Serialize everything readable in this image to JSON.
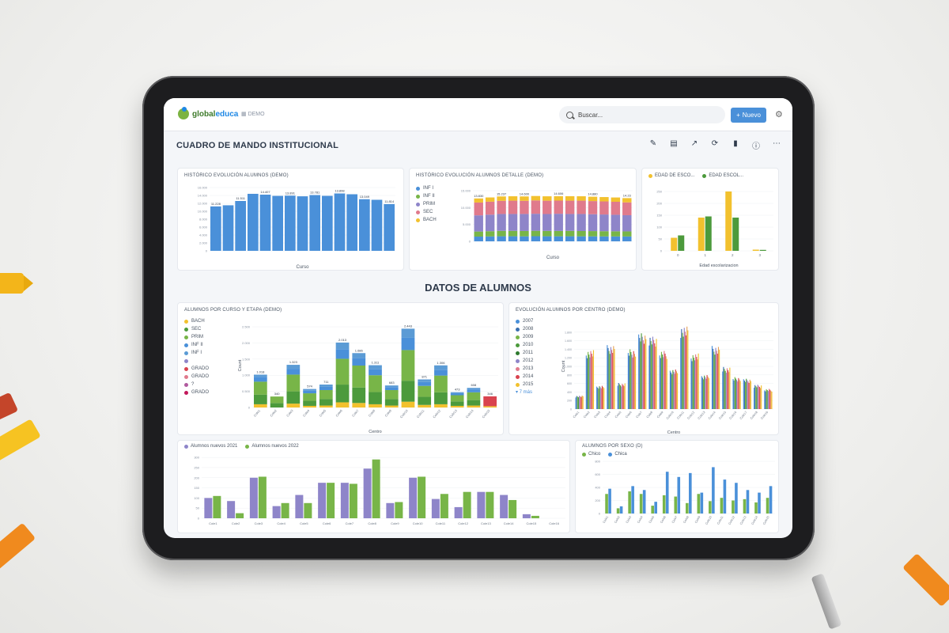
{
  "app": {
    "logo": {
      "part1": "global",
      "part2": "educa"
    },
    "breadcrumb": "DEMO",
    "search": {
      "value": "Buscar..."
    },
    "new_button": "Nuevo"
  },
  "dashboard": {
    "title": "CUADRO DE MANDO INSTITUCIONAL",
    "section_title": "DATOS DE ALUMNOS"
  },
  "colors": {
    "blue": "#4a90d9",
    "green": "#78b548",
    "darkgreen": "#4c9a3c",
    "yellow": "#f2c12e",
    "purple": "#8e85c9",
    "pink": "#e07a8c",
    "red": "#d9434e",
    "orange": "#e6a15a"
  },
  "cards": {
    "hist": {
      "title": "HISTÓRICO EVOLUCIÓN ALUMNOS (DEMO)",
      "xlabel": "Curso",
      "labels": [
        "11.228",
        "11.511",
        "14.407",
        "13.891",
        "13.781",
        "13.898",
        "13.049",
        "11.814"
      ]
    },
    "hist_detail": {
      "title": "HISTÓRICO EVOLUCIÓN ALUMNOS DETALLE (DEMO)",
      "xlabel": "Curso",
      "legend": [
        "INF I",
        "INF II",
        "PRIM",
        "SEC",
        "BACH"
      ],
      "labels": [
        "13.830",
        "15.237",
        "14.600",
        "14.606",
        "14.880",
        "14.23"
      ]
    },
    "edad": {
      "title_a": "EDAD DE ESCO...",
      "title_b": "EDAD ESCOL...",
      "xlabel": "Edad escolarizacion"
    },
    "curso_etapa": {
      "title": "ALUMNOS POR CURSO Y ETAPA (DEMO)",
      "xlabel": "Centro",
      "ylabel": "Count",
      "legend": [
        "BACH",
        "SEC",
        "PRIM",
        "INF II",
        "INF I",
        "",
        "GRADO",
        "GRADO",
        "?",
        "GRADO"
      ],
      "labels": [
        "1.018",
        "340",
        "1.323",
        "574",
        "711",
        "2.013",
        "1.686",
        "1.311",
        "683",
        "2.443",
        "871",
        "1.306",
        "473",
        "608",
        "346"
      ]
    },
    "evol_centro": {
      "title": "EVOLUCIÓN ALUMNOS POR CENTRO (DEMO)",
      "xlabel": "Centro",
      "ylabel": "Count",
      "legend": [
        "2007",
        "2008",
        "2009",
        "2010",
        "2011",
        "2012",
        "2013",
        "2014",
        "2015"
      ],
      "more": "▾ 7 más"
    },
    "nuevos": {
      "legend": [
        "Alumnos nuevos 2021",
        "Alumnos nuevos 2022"
      ]
    },
    "sexo": {
      "title": "ALUMNOS POR SEXO (D)",
      "legend": [
        "Chico",
        "Chica"
      ]
    }
  },
  "chart_data": [
    {
      "type": "bar",
      "title": "HISTÓRICO EVOLUCIÓN ALUMNOS (DEMO)",
      "xlabel": "Curso",
      "ylim": [
        0,
        16000
      ],
      "values": [
        11228,
        11511,
        12600,
        14407,
        14200,
        13891,
        13950,
        13781,
        14100,
        13898,
        14500,
        14300,
        13049,
        12900,
        11814
      ]
    },
    {
      "type": "bar",
      "title": "HISTÓRICO EVOLUCIÓN ALUMNOS DETALLE (DEMO)",
      "stacked": true,
      "series": [
        {
          "name": "INF I",
          "values": [
            1400,
            1450,
            1500,
            1500,
            1480,
            1520,
            1500,
            1490,
            1500,
            1480,
            1470,
            1460,
            1450,
            1440
          ]
        },
        {
          "name": "INF II",
          "values": [
            1500,
            1550,
            1600,
            1600,
            1580,
            1600,
            1590,
            1580,
            1600,
            1570,
            1560,
            1540,
            1520,
            1500
          ]
        },
        {
          "name": "PRIM",
          "values": [
            4800,
            4900,
            5000,
            5000,
            5050,
            5050,
            5000,
            5100,
            5000,
            5050,
            5000,
            4950,
            4900,
            4800
          ]
        },
        {
          "name": "SEC",
          "values": [
            3800,
            3850,
            3900,
            3950,
            3900,
            3950,
            3950,
            3900,
            3950,
            3950,
            3900,
            3880,
            3850,
            3800
          ]
        },
        {
          "name": "BACH",
          "values": [
            1200,
            1250,
            1300,
            1300,
            1290,
            1310,
            1300,
            1290,
            1310,
            1300,
            1290,
            1280,
            1270,
            1260
          ]
        }
      ]
    },
    {
      "type": "bar",
      "xlabel": "Edad escolarizacion",
      "categories": [
        "0",
        "1",
        "2",
        "3"
      ],
      "series": [
        {
          "name": "EDAD DE ESCO...",
          "values": [
            55,
            140,
            250,
            5
          ]
        },
        {
          "name": "EDAD ESCOL...",
          "values": [
            65,
            145,
            140,
            4
          ]
        }
      ]
    },
    {
      "type": "bar",
      "title": "ALUMNOS POR CURSO Y ETAPA (DEMO)",
      "stacked": true,
      "xlabel": "Centro",
      "ylabel": "Count",
      "categories": [
        "Cole1",
        "Cole2",
        "Cole3",
        "Cole4",
        "Cole5",
        "Cole6",
        "Cole7",
        "Cole8",
        "Cole9",
        "Cole10",
        "Cole11",
        "Cole12",
        "Cole13",
        "Cole14",
        "Cole15"
      ],
      "series": [
        {
          "name": "BACH",
          "values": [
            100,
            0,
            120,
            50,
            60,
            160,
            140,
            100,
            60,
            180,
            80,
            100,
            50,
            60,
            40
          ]
        },
        {
          "name": "SEC",
          "values": [
            300,
            140,
            380,
            160,
            200,
            550,
            480,
            380,
            200,
            650,
            250,
            370,
            140,
            170,
            0
          ]
        },
        {
          "name": "PRIM",
          "values": [
            400,
            200,
            520,
            230,
            280,
            800,
            680,
            520,
            280,
            950,
            340,
            520,
            190,
            240,
            0
          ]
        },
        {
          "name": "INF II",
          "values": [
            150,
            0,
            180,
            80,
            100,
            300,
            230,
            180,
            90,
            380,
            120,
            180,
            60,
            90,
            0
          ]
        },
        {
          "name": "INF I",
          "values": [
            68,
            0,
            123,
            54,
            71,
            203,
            156,
            131,
            53,
            283,
            81,
            136,
            33,
            48,
            0
          ]
        },
        {
          "name": "GRADO",
          "values": [
            0,
            0,
            0,
            0,
            0,
            0,
            0,
            0,
            0,
            0,
            0,
            0,
            0,
            0,
            306
          ]
        }
      ]
    },
    {
      "type": "bar",
      "title": "EVOLUCIÓN ALUMNOS POR CENTRO (DEMO)",
      "xlabel": "Centro",
      "ylabel": "Count",
      "series_names": [
        "2007",
        "2008",
        "2009",
        "2010",
        "2011",
        "2012",
        "2013",
        "2014",
        "2015"
      ],
      "group_values": [
        320,
        1400,
        560,
        1520,
        620,
        1420,
        1800,
        1720,
        1380,
        940,
        1960,
        1320,
        820,
        1500,
        1000,
        760,
        720,
        580,
        480
      ]
    },
    {
      "type": "bar",
      "categories": [
        "Cole1",
        "Cole2",
        "Cole3",
        "Cole4",
        "Cole5",
        "Cole6",
        "Cole7",
        "Cole8",
        "Cole9",
        "Cole10",
        "Cole11",
        "Cole12",
        "Cole13",
        "Cole14",
        "Cole15",
        "Cole16"
      ],
      "series": [
        {
          "name": "Alumnos nuevos 2021",
          "values": [
            100,
            85,
            200,
            60,
            115,
            175,
            175,
            245,
            75,
            200,
            95,
            55,
            130,
            115,
            20,
            0
          ]
        },
        {
          "name": "Alumnos nuevos 2022",
          "values": [
            110,
            25,
            205,
            75,
            75,
            175,
            170,
            290,
            80,
            205,
            120,
            130,
            130,
            90,
            12,
            0
          ]
        }
      ]
    },
    {
      "type": "bar",
      "title": "ALUMNOS POR SEXO (D)",
      "series": [
        {
          "name": "Chico",
          "values": [
            300,
            80,
            340,
            300,
            120,
            280,
            260,
            160,
            300,
            190,
            240,
            200,
            220,
            170,
            240
          ]
        },
        {
          "name": "Chica",
          "values": [
            380,
            110,
            420,
            360,
            180,
            640,
            560,
            620,
            320,
            710,
            520,
            470,
            360,
            320,
            420
          ]
        }
      ]
    }
  ]
}
